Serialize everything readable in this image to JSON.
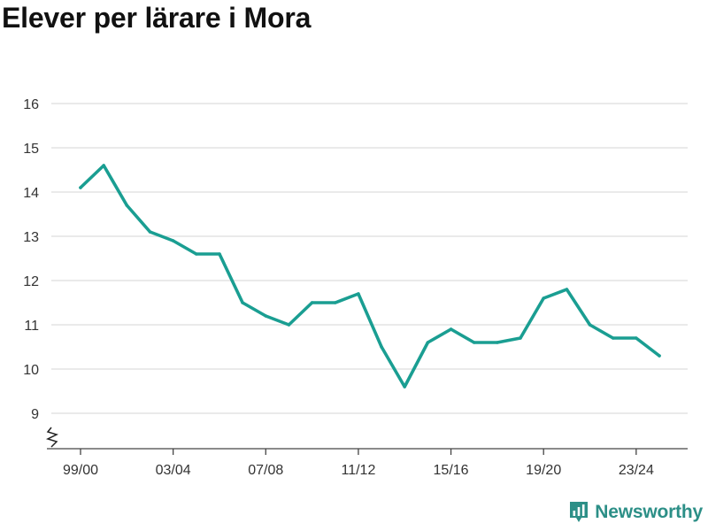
{
  "chart_data": {
    "type": "line",
    "title": "Elever per lärare i Mora",
    "xlabel": "",
    "ylabel": "",
    "categories": [
      "99/00",
      "00/01",
      "01/02",
      "02/03",
      "03/04",
      "04/05",
      "05/06",
      "06/07",
      "07/08",
      "08/09",
      "09/10",
      "10/11",
      "11/12",
      "12/13",
      "13/14",
      "14/15",
      "15/16",
      "16/17",
      "17/18",
      "18/19",
      "19/20",
      "20/21",
      "21/22",
      "22/23",
      "23/24",
      "24/25"
    ],
    "x_tick_labels": [
      "99/00",
      "03/04",
      "07/08",
      "11/12",
      "15/16",
      "19/20",
      "23/24"
    ],
    "series": [
      {
        "values": [
          14.1,
          14.6,
          13.7,
          13.1,
          12.9,
          12.6,
          12.6,
          11.5,
          11.2,
          11.0,
          11.5,
          11.5,
          11.7,
          10.5,
          9.6,
          10.6,
          10.9,
          10.6,
          10.6,
          10.7,
          11.6,
          11.8,
          11.0,
          10.7,
          10.7,
          10.3
        ],
        "color": "#1a9e92"
      }
    ],
    "y_ticks": [
      9,
      10,
      11,
      12,
      13,
      14,
      15,
      16
    ],
    "ylim": [
      9,
      16
    ],
    "y_axis_break": true,
    "grid": true,
    "gridline_color": "#dddddd",
    "axis_color": "#444444"
  },
  "branding": {
    "name": "Newsworthy",
    "icon": "newsworthy-logo-icon",
    "color": "#2c8f87"
  }
}
